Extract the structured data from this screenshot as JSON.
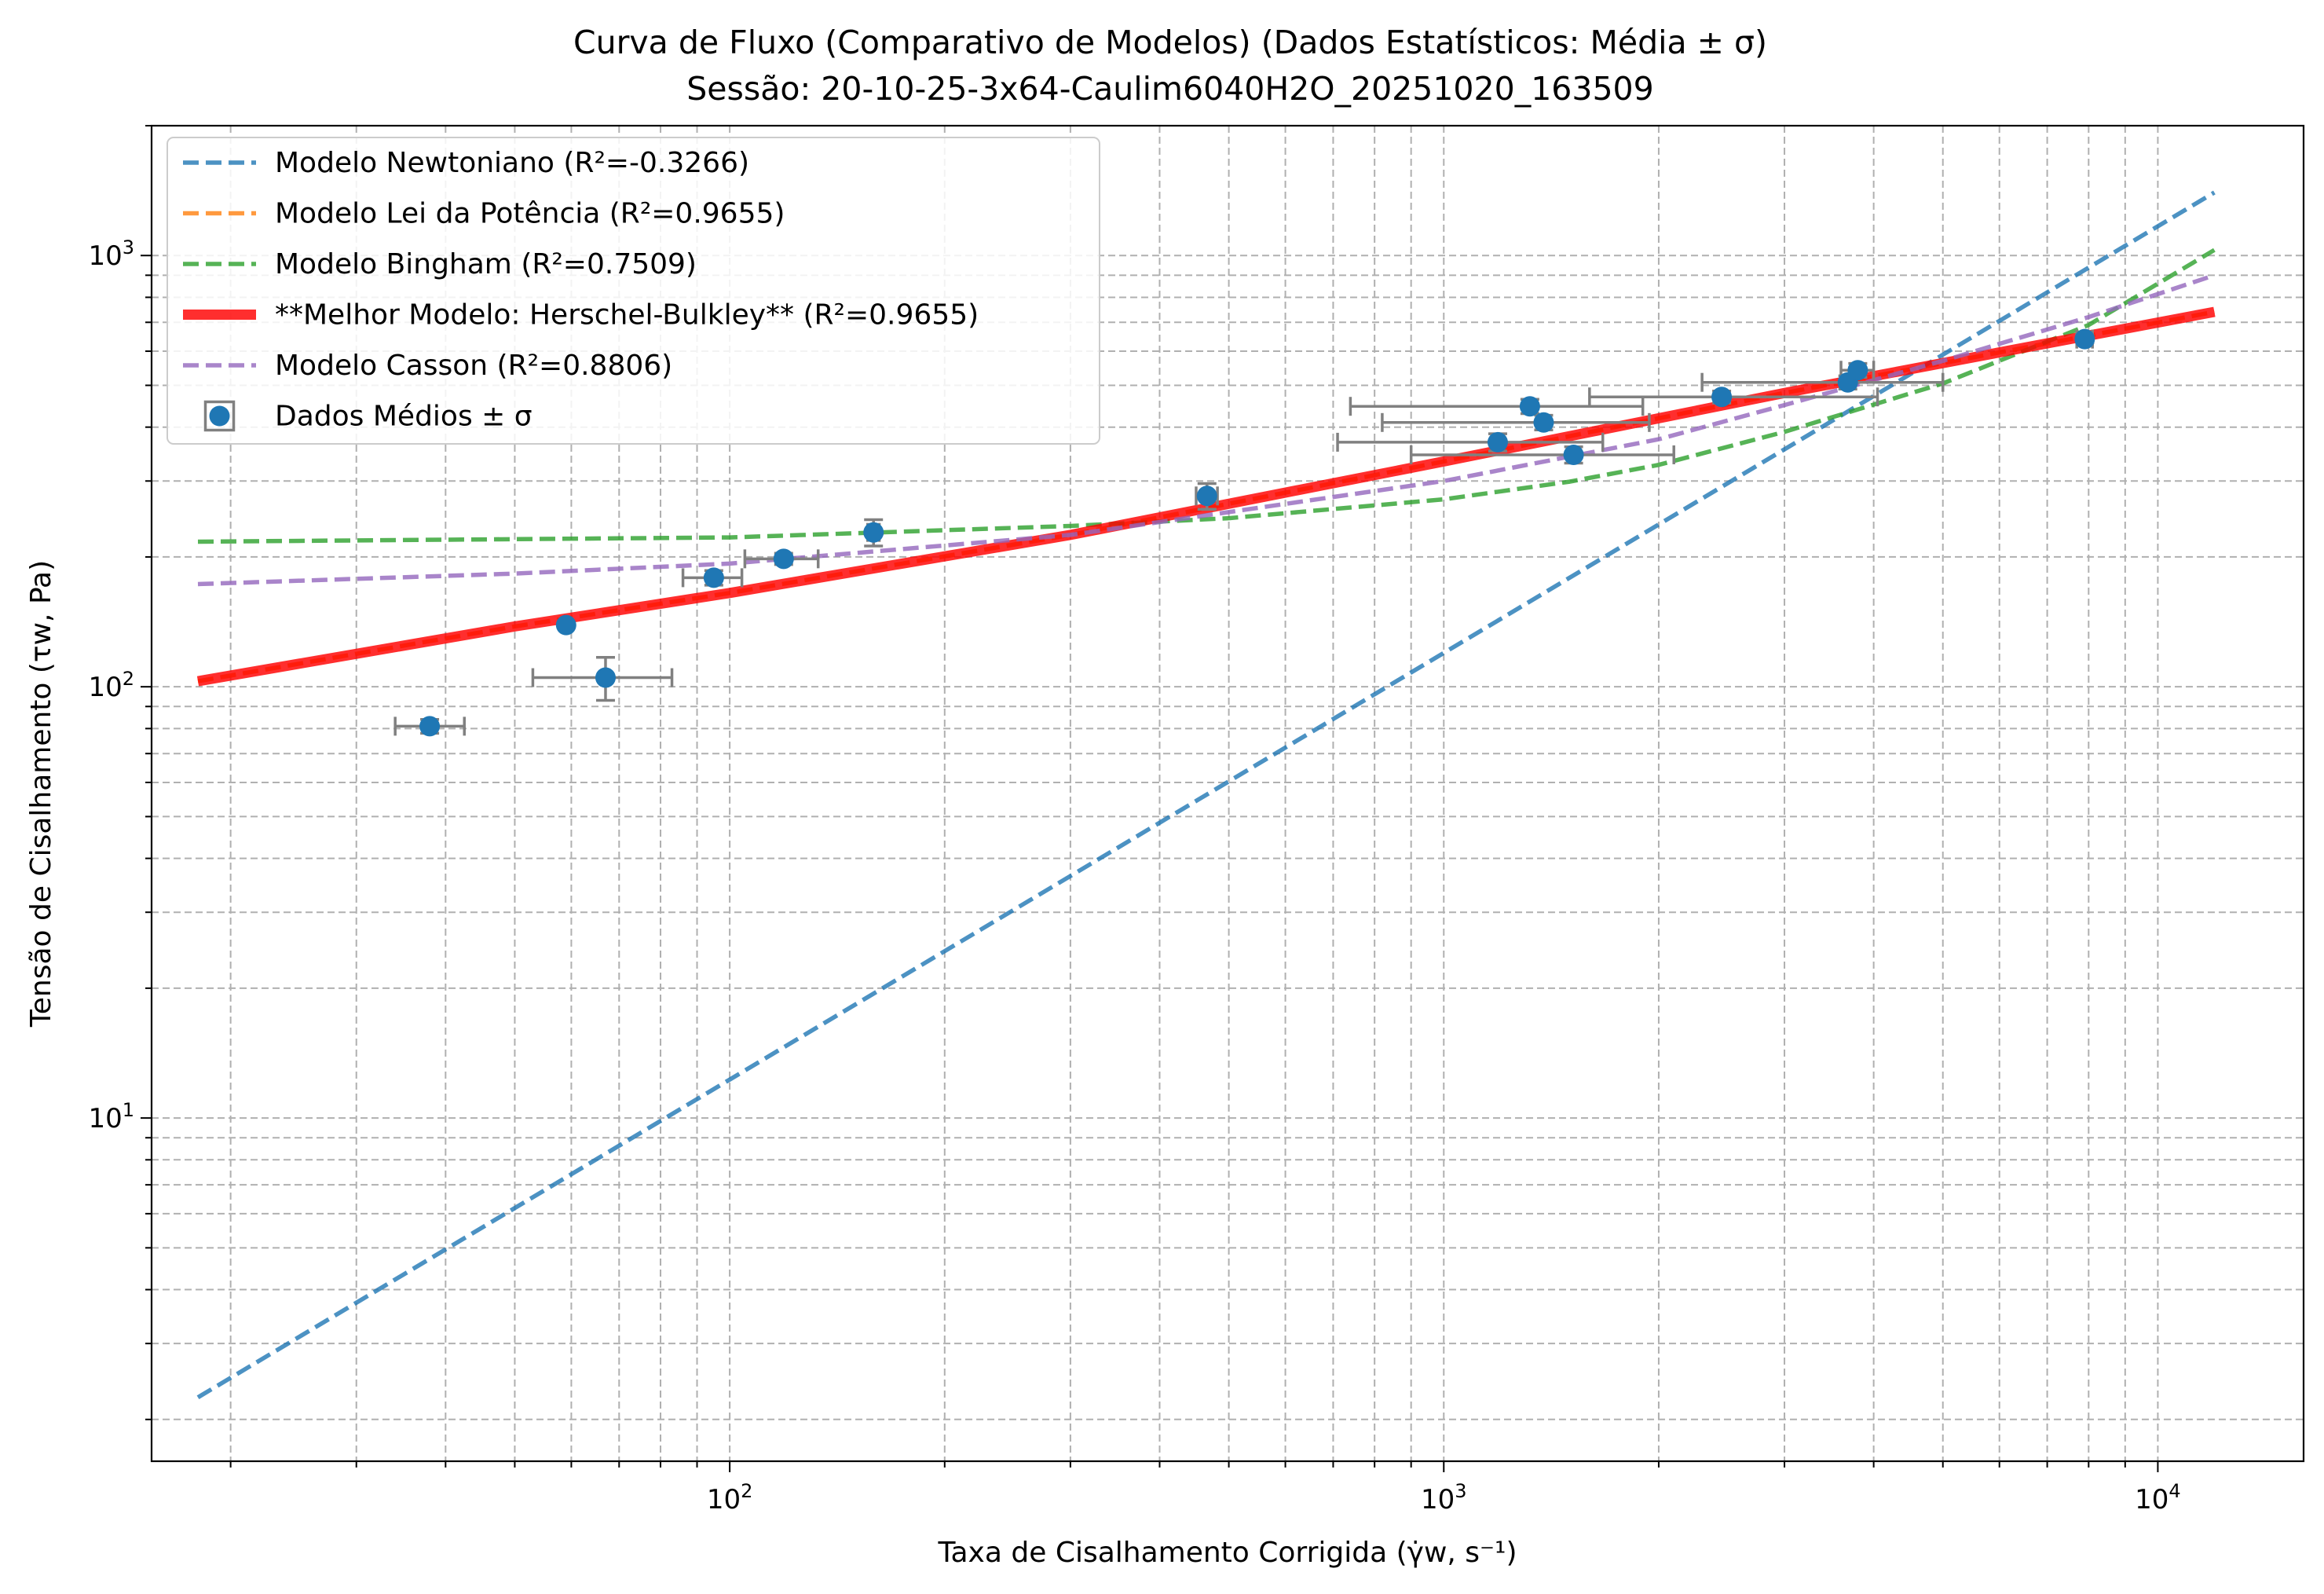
{
  "chart_data": {
    "type": "scatter",
    "title_line1": "Curva de Fluxo (Comparativo de Modelos) (Dados Estatísticos: Média ± σ)",
    "title_line2": "Sessão: 20-10-25-3x64-Caulim6040H2O_20251020_163509",
    "xlabel": "Taxa de Cisalhamento Corrigida (γ̇w, s⁻¹)",
    "ylabel": "Tensão de Cisalhamento (τw, Pa)",
    "xscale": "log",
    "yscale": "log",
    "xlim": [
      15.5,
      16000
    ],
    "ylim": [
      1.6,
      2000
    ],
    "grid": true,
    "legend_position": "top-left",
    "x_tick_labels": [
      {
        "value": 100,
        "base": "10",
        "exp": "2"
      },
      {
        "value": 1000,
        "base": "10",
        "exp": "3"
      },
      {
        "value": 10000,
        "base": "10",
        "exp": "4"
      }
    ],
    "y_tick_labels": [
      {
        "value": 10,
        "base": "10",
        "exp": "1"
      },
      {
        "value": 100,
        "base": "10",
        "exp": "2"
      },
      {
        "value": 1000,
        "base": "10",
        "exp": "3"
      }
    ],
    "series": [
      {
        "name": "Modelo Newtoniano (R²=-0.3266)",
        "kind": "line",
        "color": "#1f77b4",
        "dashed": true,
        "x": [
          18,
          12000
        ],
        "y": [
          2.25,
          1400
        ]
      },
      {
        "name": "Modelo Lei da Potência (R²=0.9655)",
        "kind": "line",
        "color": "#ff7f0e",
        "dashed": true,
        "x": [
          18,
          50,
          100,
          300,
          1000,
          3000,
          12000
        ],
        "y": [
          103,
          138,
          165,
          225,
          333,
          480,
          740
        ]
      },
      {
        "name": "Modelo Bingham (R²=0.7509)",
        "kind": "line",
        "color": "#2ca02c",
        "dashed": true,
        "x": [
          18,
          100,
          300,
          500,
          1000,
          1500,
          2000,
          3000,
          5000,
          8000,
          12000
        ],
        "y": [
          217,
          222,
          236,
          246,
          272,
          299,
          327,
          390,
          505,
          690,
          1030
        ]
      },
      {
        "name": "**Melhor Modelo: Herschel-Bulkley** (R²=0.9655)",
        "kind": "line",
        "color": "#ff0000",
        "dashed": false,
        "x": [
          18,
          50,
          100,
          300,
          1000,
          3000,
          12000
        ],
        "y": [
          103,
          138,
          165,
          225,
          333,
          480,
          740
        ]
      },
      {
        "name": "Modelo Casson (R²=0.8806)",
        "kind": "line",
        "color": "#9467bd",
        "dashed": true,
        "x": [
          18,
          50,
          100,
          300,
          1000,
          2000,
          3000,
          5000,
          8000,
          12000
        ],
        "y": [
          173,
          183,
          193,
          225,
          300,
          375,
          450,
          570,
          720,
          900
        ]
      },
      {
        "name": "Dados Médios ± σ",
        "kind": "errorbar",
        "color": "#1f77b4",
        "errcolor": "#808080",
        "points": [
          {
            "x": 38,
            "y": 81,
            "xerr": [
              34,
              42.5
            ],
            "yerr": [
              78,
              84
            ]
          },
          {
            "x": 59,
            "y": 139,
            "xerr": [
              null,
              null
            ],
            "yerr": [
              null,
              null
            ]
          },
          {
            "x": 67,
            "y": 105,
            "xerr": [
              53,
              83
            ],
            "yerr": [
              93,
              117
            ]
          },
          {
            "x": 95,
            "y": 179,
            "xerr": [
              86,
              104
            ],
            "yerr": [
              172,
              186
            ]
          },
          {
            "x": 119,
            "y": 198,
            "xerr": [
              105,
              133
            ],
            "yerr": [
              192,
              204
            ]
          },
          {
            "x": 159,
            "y": 228,
            "xerr": [
              156,
              162
            ],
            "yerr": [
              212,
              244
            ]
          },
          {
            "x": 466,
            "y": 277,
            "xerr": [
              450,
              482
            ],
            "yerr": [
              258,
              296
            ]
          },
          {
            "x": 1190,
            "y": 369,
            "xerr": [
              710,
              1670
            ],
            "yerr": [
              352,
              386
            ]
          },
          {
            "x": 1320,
            "y": 447,
            "xerr": [
              740,
              1900
            ],
            "yerr": [
              430,
              464
            ]
          },
          {
            "x": 1380,
            "y": 410,
            "xerr": [
              820,
              1940
            ],
            "yerr": [
              394,
              426
            ]
          },
          {
            "x": 1520,
            "y": 345,
            "xerr": [
              900,
              2100
            ],
            "yerr": [
              330,
              360
            ]
          },
          {
            "x": 2450,
            "y": 470,
            "xerr": [
              1600,
              4050
            ],
            "yerr": [
              455,
              485
            ]
          },
          {
            "x": 3680,
            "y": 508,
            "xerr": [
              2300,
              5000
            ],
            "yerr": [
              490,
              526
            ]
          },
          {
            "x": 3800,
            "y": 542,
            "xerr": [
              3600,
              4000
            ],
            "yerr": [
              522,
              562
            ]
          },
          {
            "x": 7900,
            "y": 640,
            "xerr": [
              7700,
              8100
            ],
            "yerr": [
              628,
              652
            ]
          }
        ]
      }
    ]
  }
}
